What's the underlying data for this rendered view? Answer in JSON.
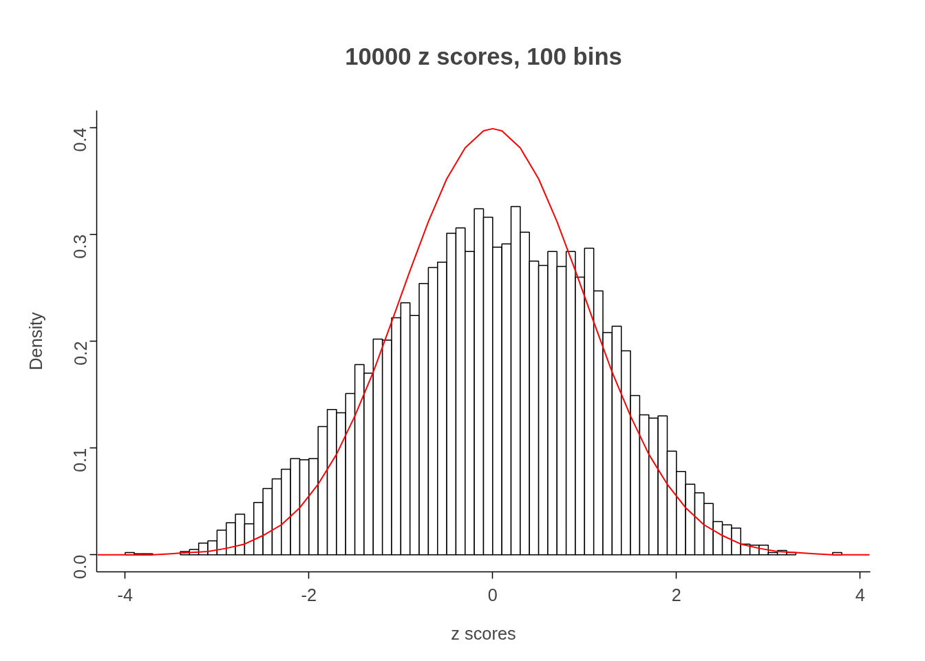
{
  "chart_data": {
    "type": "histogram",
    "title": "10000 z scores, 100 bins",
    "xlabel": "z scores",
    "ylabel": "Density",
    "color": "#ffffff",
    "bins": [
      -4.0,
      -3.9,
      -3.8,
      -3.7,
      -3.6,
      -3.5,
      -3.4,
      -3.3,
      -3.2,
      -3.1,
      -3.0,
      -2.9,
      -2.8,
      -2.7,
      -2.6,
      -2.5,
      -2.4,
      -2.3,
      -2.2,
      -2.1,
      -2.0,
      -1.9,
      -1.8,
      -1.7,
      -1.6,
      -1.5,
      -1.4,
      -1.3,
      -1.2,
      -1.1,
      -1.0,
      -0.9,
      -0.8,
      -0.7,
      -0.6,
      -0.5,
      -0.4,
      -0.3,
      -0.2,
      -0.1,
      0.0,
      0.1,
      0.2,
      0.3,
      0.4,
      0.5,
      0.6,
      0.7,
      0.8,
      0.9,
      1.0,
      1.1,
      1.2,
      1.3,
      1.4,
      1.5,
      1.6,
      1.7,
      1.8,
      1.9,
      2.0,
      2.1,
      2.2,
      2.3,
      2.4,
      2.5,
      2.6,
      2.7,
      2.8,
      2.9,
      3.0,
      3.1,
      3.2,
      3.3,
      3.4,
      3.5,
      3.6,
      3.7,
      3.8
    ],
    "values": [
      0.002,
      0.001,
      0.001,
      null,
      null,
      null,
      0.003,
      0.005,
      0.011,
      0.013,
      0.023,
      0.03,
      0.038,
      0.029,
      0.049,
      0.062,
      0.071,
      0.08,
      0.09,
      0.089,
      0.09,
      0.12,
      0.136,
      0.133,
      0.151,
      0.178,
      0.17,
      0.202,
      0.201,
      0.222,
      0.236,
      0.224,
      0.254,
      0.269,
      0.274,
      0.301,
      0.306,
      0.284,
      0.324,
      0.316,
      0.288,
      0.291,
      0.326,
      0.302,
      0.275,
      0.271,
      0.284,
      0.27,
      0.284,
      0.26,
      0.287,
      0.247,
      0.208,
      0.214,
      0.191,
      0.149,
      0.131,
      0.128,
      0.13,
      0.097,
      0.078,
      0.066,
      0.058,
      0.048,
      0.031,
      0.028,
      0.025,
      0.01,
      0.009,
      0.009,
      0.002,
      0.004,
      0.002,
      null,
      null,
      null,
      null,
      0.002
    ],
    "series": [
      {
        "type": "line",
        "color": "#ff0000",
        "x": [
          -4.3,
          -4.1,
          -3.9,
          -3.7,
          -3.5,
          -3.3,
          -3.1,
          -2.9,
          -2.7,
          -2.5,
          -2.3,
          -2.1,
          -1.9,
          -1.7,
          -1.5,
          -1.3,
          -1.1,
          -0.9,
          -0.7,
          -0.5,
          -0.3,
          -0.1,
          0.0,
          0.1,
          0.3,
          0.5,
          0.7,
          0.9,
          1.1,
          1.3,
          1.5,
          1.7,
          1.9,
          2.1,
          2.3,
          2.5,
          2.7,
          2.9,
          3.1,
          3.3,
          3.5,
          3.7,
          3.9,
          4.1
        ],
        "values": [
          0.0,
          0.0,
          0.0,
          0.0,
          0.001,
          0.002,
          0.003,
          0.006,
          0.01,
          0.018,
          0.028,
          0.044,
          0.066,
          0.094,
          0.13,
          0.171,
          0.218,
          0.266,
          0.312,
          0.352,
          0.381,
          0.397,
          0.399,
          0.397,
          0.381,
          0.352,
          0.312,
          0.266,
          0.218,
          0.171,
          0.13,
          0.094,
          0.066,
          0.044,
          0.028,
          0.018,
          0.01,
          0.006,
          0.003,
          0.002,
          0.001,
          0.0,
          0.0,
          0.0
        ]
      }
    ],
    "xlim": [
      -4.31,
      4.11
    ],
    "xticks": [
      -4,
      -2,
      0,
      2,
      4
    ],
    "ylim": [
      -0.016,
      0.416
    ],
    "yticks": [
      {
        "value": 0,
        "label": "0.0"
      },
      {
        "value": 0.1,
        "label": "0.1"
      },
      {
        "value": 0.2,
        "label": "0.2"
      },
      {
        "value": 0.3,
        "label": "0.3"
      },
      {
        "value": 0.4,
        "label": "0.4"
      }
    ],
    "grid": false
  }
}
